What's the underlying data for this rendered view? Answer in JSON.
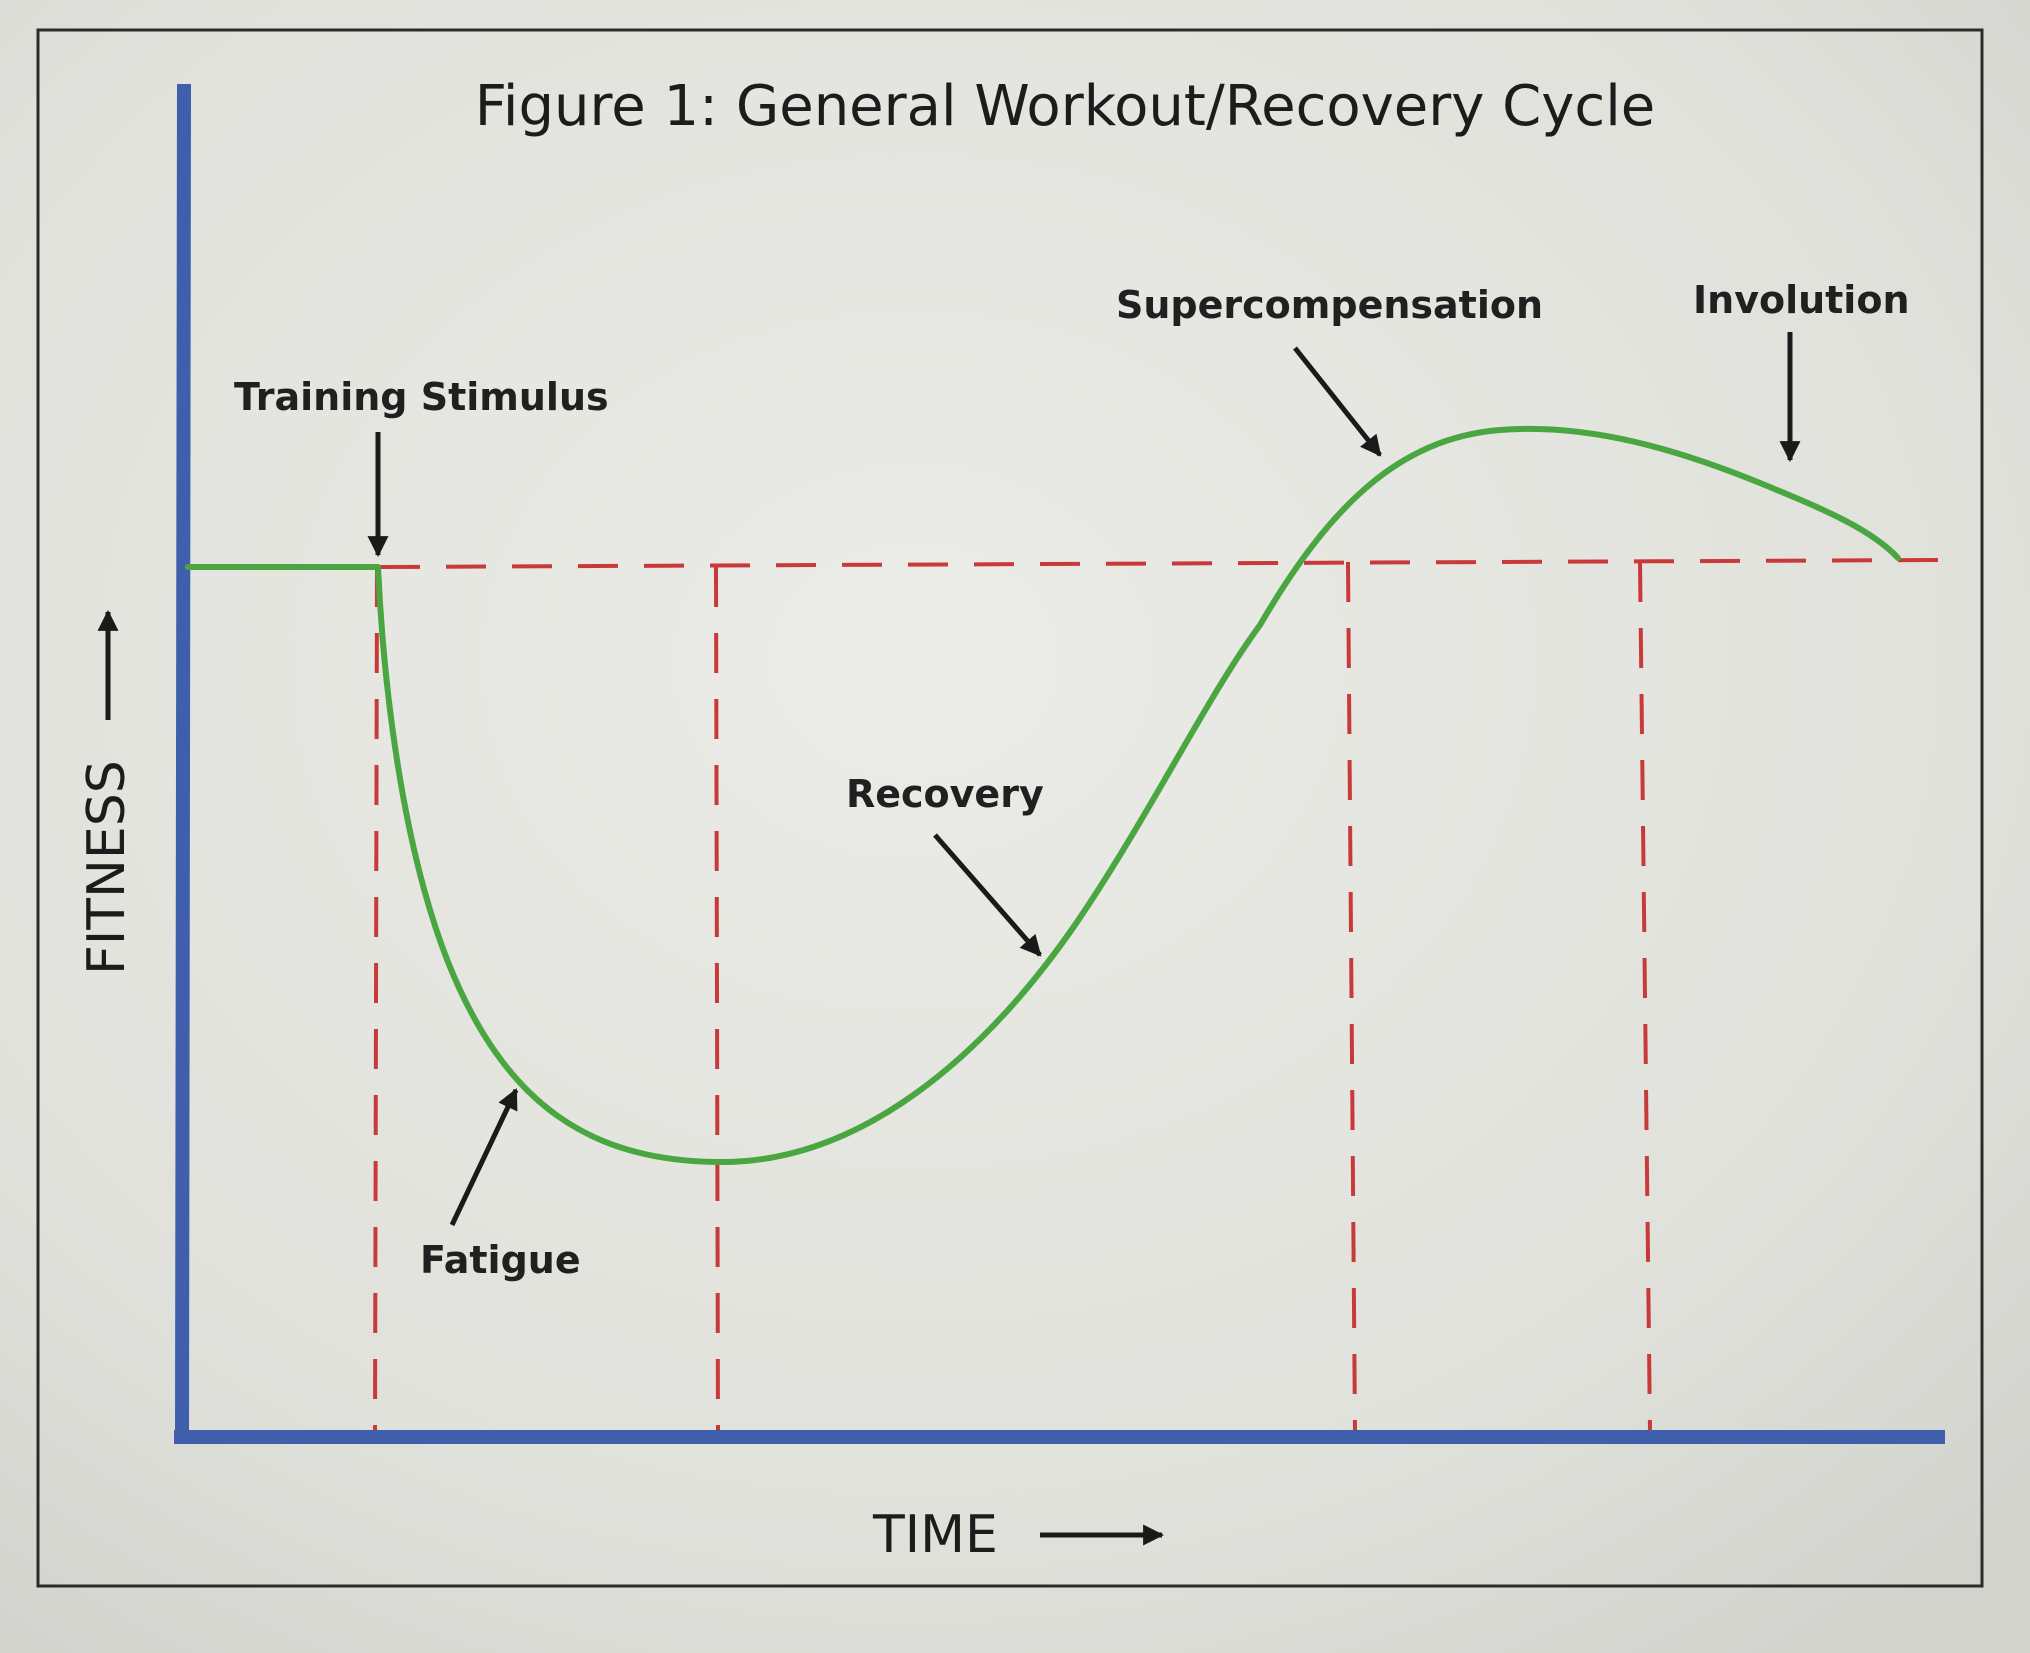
{
  "title": "Figure 1: General Workout/Recovery Cycle",
  "axes": {
    "x_label": "TIME",
    "y_label": "FITNESS"
  },
  "annotations": {
    "training_stimulus": "Training Stimulus",
    "fatigue": "Fatigue",
    "recovery": "Recovery",
    "supercompensation": "Supercompensation",
    "involution": "Involution"
  },
  "colors": {
    "axis": "#3f5eab",
    "curve": "#4aa640",
    "guide": "#c83a3a",
    "frame": "#2b2b2b",
    "background": "#e4e4df",
    "text": "#1e1e1e"
  }
}
